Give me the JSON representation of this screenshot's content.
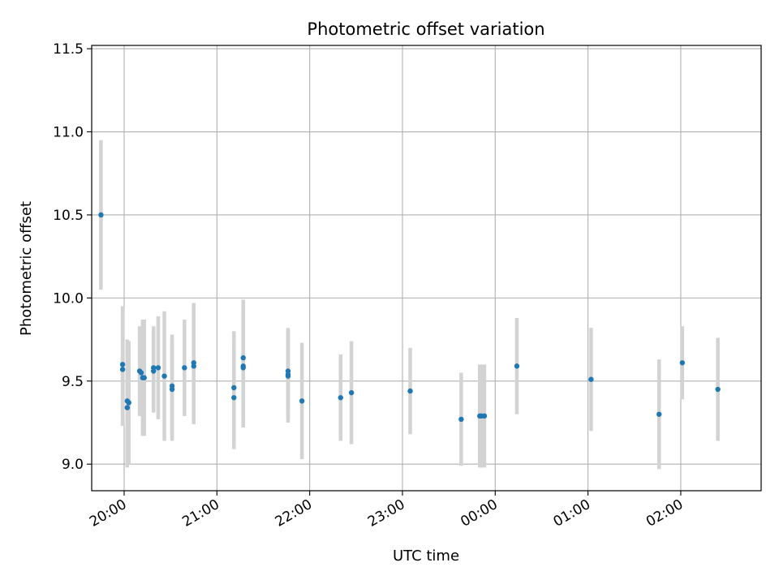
{
  "chart_data": {
    "type": "scatter",
    "title": "Photometric offset variation",
    "xlabel": "UTC time",
    "ylabel": "Photometric offset",
    "x_tick_labels": [
      "20:00",
      "21:00",
      "22:00",
      "23:00",
      "00:00",
      "01:00",
      "02:00"
    ],
    "y_tick_labels": [
      "9.0",
      "9.5",
      "10.0",
      "10.5",
      "11.0",
      "11.5"
    ],
    "ylim": [
      8.84,
      11.52
    ],
    "xlim": [
      "19:39",
      "02:52"
    ],
    "grid": true,
    "marker_color": "#1f77b4",
    "errorbar_color": "#d3d3d3",
    "series": [
      {
        "points": [
          {
            "t": "19:45",
            "y": 10.5,
            "err": 0.45
          },
          {
            "t": "19:59",
            "y": 9.6,
            "err": 0.35
          },
          {
            "t": "19:59",
            "y": 9.57,
            "err": 0.34
          },
          {
            "t": "20:02",
            "y": 9.38,
            "err": 0.37
          },
          {
            "t": "20:03",
            "y": 9.37,
            "err": 0.37
          },
          {
            "t": "20:02",
            "y": 9.34,
            "err": 0.36
          },
          {
            "t": "20:10",
            "y": 9.56,
            "err": 0.27
          },
          {
            "t": "20:11",
            "y": 9.55,
            "err": 0.26
          },
          {
            "t": "20:12",
            "y": 9.52,
            "err": 0.35
          },
          {
            "t": "20:13",
            "y": 9.52,
            "err": 0.35
          },
          {
            "t": "20:19",
            "y": 9.58,
            "err": 0.25
          },
          {
            "t": "20:19",
            "y": 9.56,
            "err": 0.25
          },
          {
            "t": "20:22",
            "y": 9.58,
            "err": 0.31
          },
          {
            "t": "20:26",
            "y": 9.53,
            "err": 0.39
          },
          {
            "t": "20:31",
            "y": 9.47,
            "err": 0.31
          },
          {
            "t": "20:31",
            "y": 9.45,
            "err": 0.31
          },
          {
            "t": "20:39",
            "y": 9.58,
            "err": 0.29
          },
          {
            "t": "20:45",
            "y": 9.61,
            "err": 0.36
          },
          {
            "t": "20:45",
            "y": 9.59,
            "err": 0.35
          },
          {
            "t": "21:11",
            "y": 9.46,
            "err": 0.34
          },
          {
            "t": "21:11",
            "y": 9.4,
            "err": 0.31
          },
          {
            "t": "21:17",
            "y": 9.64,
            "err": 0.35
          },
          {
            "t": "21:17",
            "y": 9.59,
            "err": 0.36
          },
          {
            "t": "21:17",
            "y": 9.58,
            "err": 0.36
          },
          {
            "t": "21:46",
            "y": 9.56,
            "err": 0.26
          },
          {
            "t": "21:46",
            "y": 9.54,
            "err": 0.26
          },
          {
            "t": "21:46",
            "y": 9.53,
            "err": 0.28
          },
          {
            "t": "21:55",
            "y": 9.38,
            "err": 0.35
          },
          {
            "t": "22:20",
            "y": 9.4,
            "err": 0.26
          },
          {
            "t": "22:27",
            "y": 9.43,
            "err": 0.31
          },
          {
            "t": "23:05",
            "y": 9.44,
            "err": 0.26
          },
          {
            "t": "23:38",
            "y": 9.27,
            "err": 0.28
          },
          {
            "t": "23:50",
            "y": 9.29,
            "err": 0.31
          },
          {
            "t": "23:51",
            "y": 9.29,
            "err": 0.31
          },
          {
            "t": "23:53",
            "y": 9.29,
            "err": 0.31
          },
          {
            "t": "00:14",
            "y": 9.59,
            "err": 0.29
          },
          {
            "t": "01:02",
            "y": 9.51,
            "err": 0.31
          },
          {
            "t": "01:46",
            "y": 9.3,
            "err": 0.33
          },
          {
            "t": "02:01",
            "y": 9.61,
            "err": 0.22
          },
          {
            "t": "02:24",
            "y": 9.45,
            "err": 0.31
          }
        ]
      }
    ]
  }
}
